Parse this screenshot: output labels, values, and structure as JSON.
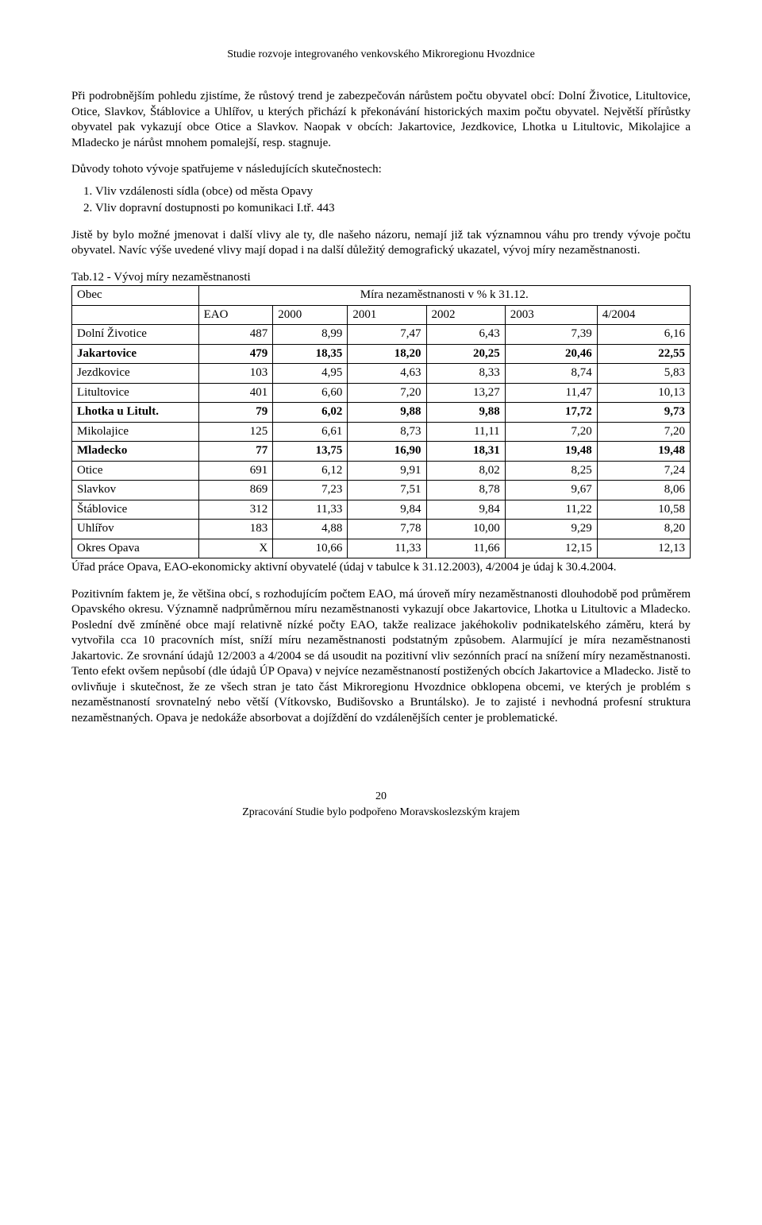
{
  "header": "Studie rozvoje integrovaného venkovského Mikroregionu Hvozdnice",
  "para1": "Při podrobnějším pohledu zjistíme, že růstový trend je zabezpečován nárůstem počtu obyvatel obcí: Dolní Životice, Litultovice, Otice, Slavkov, Štáblovice a Uhlířov, u kterých přichází k překonávání historických maxim počtu obyvatel. Největší přírůstky obyvatel pak vykazují obce Otice a Slavkov. Naopak v obcích: Jakartovice, Jezdkovice, Lhotka u Litultovic, Mikolajice a Mladecko je nárůst mnohem pomalejší, resp. stagnuje.",
  "reasons_intro": "Důvody tohoto vývoje spatřujeme v následujících skutečnostech:",
  "reasons": [
    "Vliv vzdálenosti sídla (obce) od města Opavy",
    "Vliv dopravní dostupnosti po komunikaci I.tř. 443"
  ],
  "para2": "Jistě by bylo možné jmenovat i další vlivy ale ty, dle našeho názoru, nemají již tak významnou váhu pro trendy vývoje počtu obyvatel. Navíc výše uvedené vlivy mají dopad i na další důležitý demografický ukazatel, vývoj míry nezaměstnanosti.",
  "table_caption": "Tab.12 - Vývoj míry nezaměstnanosti",
  "table": {
    "header_obec": "Obec",
    "header_rate": "Míra nezaměstnanosti v % k 31.12.",
    "cols": [
      "EAO",
      "2000",
      "2001",
      "2002",
      "2003",
      "4/2004"
    ],
    "rows": [
      {
        "name": "Dolní Životice",
        "bold": false,
        "vals": [
          "487",
          "8,99",
          "7,47",
          "6,43",
          "7,39",
          "6,16"
        ]
      },
      {
        "name": "Jakartovice",
        "bold": true,
        "vals": [
          "479",
          "18,35",
          "18,20",
          "20,25",
          "20,46",
          "22,55"
        ]
      },
      {
        "name": "Jezdkovice",
        "bold": false,
        "vals": [
          "103",
          "4,95",
          "4,63",
          "8,33",
          "8,74",
          "5,83"
        ]
      },
      {
        "name": "Litultovice",
        "bold": false,
        "vals": [
          "401",
          "6,60",
          "7,20",
          "13,27",
          "11,47",
          "10,13"
        ]
      },
      {
        "name": "Lhotka u Litult.",
        "bold": true,
        "vals": [
          "79",
          "6,02",
          "9,88",
          "9,88",
          "17,72",
          "9,73"
        ]
      },
      {
        "name": "Mikolajice",
        "bold": false,
        "vals": [
          "125",
          "6,61",
          "8,73",
          "11,11",
          "7,20",
          "7,20"
        ]
      },
      {
        "name": "Mladecko",
        "bold": true,
        "vals": [
          "77",
          "13,75",
          "16,90",
          "18,31",
          "19,48",
          "19,48"
        ]
      },
      {
        "name": "Otice",
        "bold": false,
        "vals": [
          "691",
          "6,12",
          "9,91",
          "8,02",
          "8,25",
          "7,24"
        ]
      },
      {
        "name": "Slavkov",
        "bold": false,
        "vals": [
          "869",
          "7,23",
          "7,51",
          "8,78",
          "9,67",
          "8,06"
        ]
      },
      {
        "name": "Štáblovice",
        "bold": false,
        "vals": [
          "312",
          "11,33",
          "9,84",
          "9,84",
          "11,22",
          "10,58"
        ]
      },
      {
        "name": "Uhlířov",
        "bold": false,
        "vals": [
          "183",
          "4,88",
          "7,78",
          "10,00",
          "9,29",
          "8,20"
        ]
      },
      {
        "name": "Okres Opava",
        "bold": false,
        "vals": [
          "X",
          "10,66",
          "11,33",
          "11,66",
          "12,15",
          "12,13"
        ]
      }
    ],
    "col_widths": [
      "160",
      "90",
      "90",
      "96",
      "96",
      "116",
      "116"
    ]
  },
  "table_note": "Úřad práce Opava, EAO-ekonomicky aktivní obyvatelé (údaj v tabulce k 31.12.2003), 4/2004 je údaj k 30.4.2004.",
  "para3": "Pozitivním faktem je, že většina obcí, s rozhodujícím počtem EAO, má úroveň míry nezaměstnanosti dlouhodobě pod průměrem Opavského okresu. Významně nadprůměrnou míru nezaměstnanosti vykazují obce Jakartovice, Lhotka u Litultovic a Mladecko. Poslední dvě zmíněné obce mají relativně nízké počty EAO, takže realizace jakéhokoliv podnikatelského záměru, která by vytvořila cca 10 pracovních míst, sníží míru nezaměstnanosti podstatným způsobem. Alarmující je míra nezaměstnanosti Jakartovic. Ze srovnání údajů 12/2003 a 4/2004 se dá usoudit na pozitivní vliv sezónních prací na snížení míry nezaměstnanosti. Tento efekt ovšem nepůsobí (dle údajů ÚP Opava) v nejvíce nezaměstnaností postižených obcích Jakartovice a Mladecko. Jistě to ovlivňuje i skutečnost, že ze všech stran je tato část Mikroregionu Hvozdnice obklopena obcemi, ve kterých je problém s nezaměstnaností srovnatelný nebo větší (Vítkovsko, Budišovsko a Bruntálsko). Je to zajisté i nevhodná profesní struktura nezaměstnaných. Opava je nedokáže absorbovat a dojíždění do vzdálenějších center je problematické.",
  "footer": {
    "pagenum": "20",
    "text": "Zpracování Studie bylo podpořeno Moravskoslezským krajem"
  }
}
